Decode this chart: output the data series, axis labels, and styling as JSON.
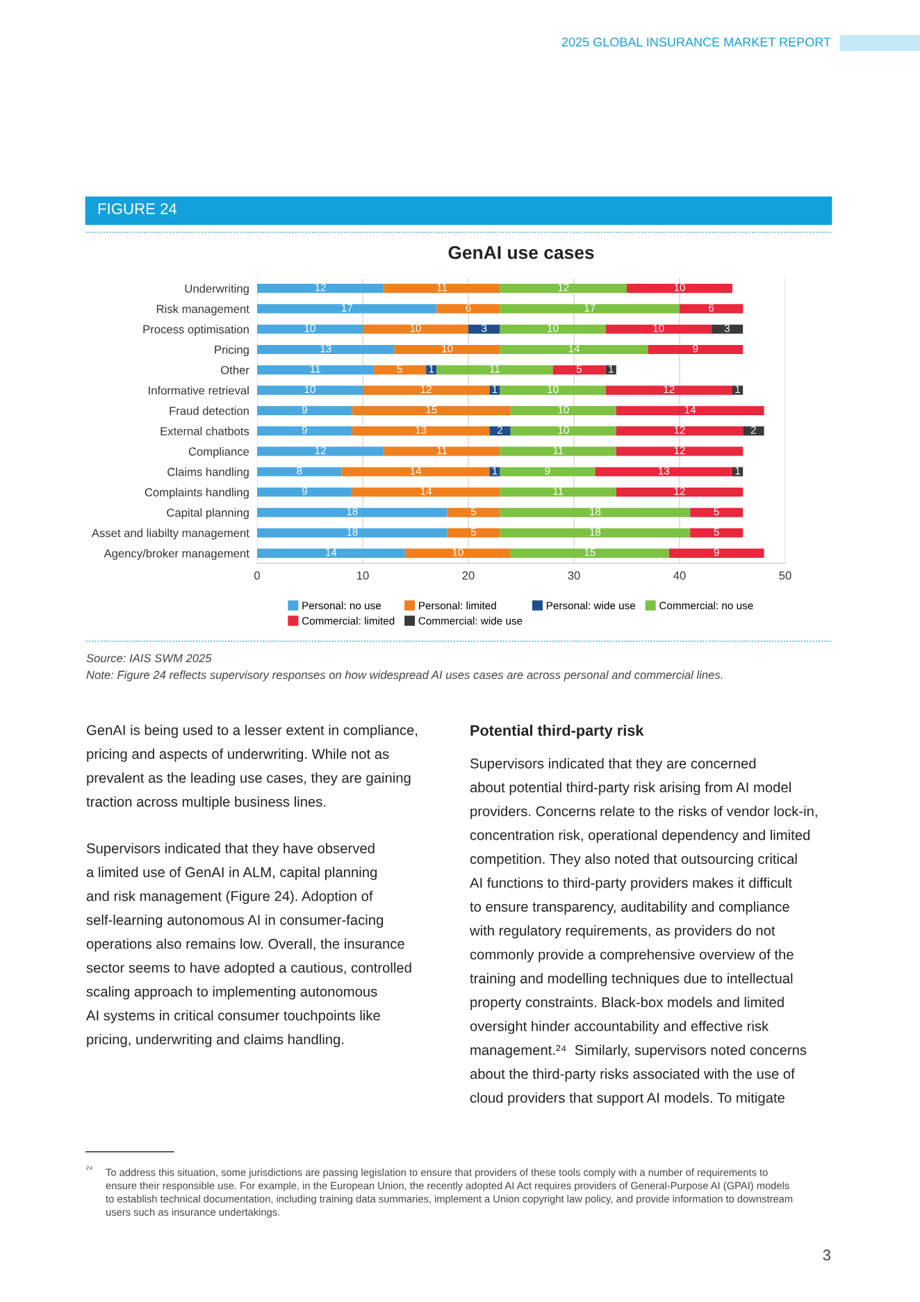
{
  "chart_data": {
    "type": "bar",
    "orientation": "horizontal",
    "stacked": true,
    "title": "GenAI use cases",
    "categories": [
      "Underwriting",
      "Risk management",
      "Process optimisation",
      "Pricing",
      "Other",
      "Informative retrieval",
      "Fraud detection",
      "External chatbots",
      "Compliance",
      "Claims handling",
      "Complaints handling",
      "Capital planning",
      "Asset and liabilty management",
      "Agency/broker management"
    ],
    "series": [
      {
        "name": "Personal: no use",
        "color": "#4aa8e0",
        "values": [
          12,
          17,
          10,
          13,
          11,
          10,
          9,
          9,
          12,
          8,
          9,
          18,
          18,
          14
        ]
      },
      {
        "name": "Personal: limited",
        "color": "#f07f1e",
        "values": [
          11,
          6,
          10,
          10,
          5,
          12,
          15,
          13,
          11,
          14,
          14,
          5,
          5,
          10
        ]
      },
      {
        "name": "Personal: wide use",
        "color": "#1f4e8c",
        "values": [
          null,
          null,
          3,
          null,
          1,
          1,
          null,
          2,
          null,
          1,
          null,
          null,
          null,
          null
        ]
      },
      {
        "name": "Commercial: no use",
        "color": "#7dc243",
        "values": [
          12,
          17,
          10,
          14,
          11,
          10,
          10,
          10,
          11,
          9,
          11,
          18,
          18,
          15
        ]
      },
      {
        "name": "Commercial: limited",
        "color": "#e8283c",
        "values": [
          10,
          6,
          10,
          9,
          5,
          12,
          14,
          12,
          12,
          13,
          12,
          5,
          5,
          9
        ]
      },
      {
        "name": "Commercial: wide use",
        "color": "#3a3a3a",
        "values": [
          null,
          null,
          3,
          null,
          1,
          1,
          null,
          2,
          null,
          1,
          null,
          null,
          null,
          null
        ]
      }
    ],
    "xlim": [
      0,
      50
    ],
    "xticks": [
      0,
      10,
      20,
      30,
      40,
      50
    ],
    "grid": "x",
    "legend": "bottom",
    "data_labels": true,
    "annotations": [
      "2025 GLOBAL INSURANCE MARKET REPORT",
      "FIGURE 24",
      "Source: IAIS SWM 2025",
      "Note: Figure 24 reflects supervisory responses on how widespread AI uses cases are across personal and commercial lines.",
      "GenAI is being used to a lesser extent in compliance,\npricing and aspects of underwriting. While not as\nprevalent as the leading use cases, they are gaining\ntraction across multiple business lines.",
      "Supervisors indicated that they have observed\na limited use of GenAI in ALM, capital planning\nand risk management (Figure 24). Adoption of\nself-learning autonomous AI in consumer-facing\noperations also remains low. Overall, the insurance\nsector seems to have adopted a cautious, controlled\nscaling approach to implementing autonomous\nAI systems in critical consumer touchpoints like\npricing, underwriting and claims handling.",
      "Potential third-party risk",
      "Supervisors indicated that they are concerned\nabout potential third-party risk arising from AI model\nproviders. Concerns relate to the risks of vendor lock-in,\nconcentration risk, operational dependency and limited\ncompetition. They also noted that outsourcing critical\nAI functions to third-party providers makes it difficult\nto ensure transparency, auditability and compliance\nwith regulatory requirements, as providers do not\ncommonly provide a comprehensive overview of the\ntraining and modelling techniques due to intellectual\nproperty constraints. Black-box models and limited\noversight hinder accountability and effective risk\nmanagement.²⁴  Similarly, supervisors noted concerns\nabout the third-party risks associated with the use of\ncloud providers that support AI models. To mitigate",
      "²⁴",
      "To address this situation, some jurisdictions are passing legislation to ensure that providers of these tools comply with a number of requirements to\nensure their responsible use. For example, in the European Union, the recently adopted AI Act requires providers of General-Purpose AI (GPAI) models\nto establish technical documentation, including training data summaries, implement a Union copyright law policy, and provide information to downstream\nusers such as insurance undertakings.",
      "3"
    ]
  }
}
